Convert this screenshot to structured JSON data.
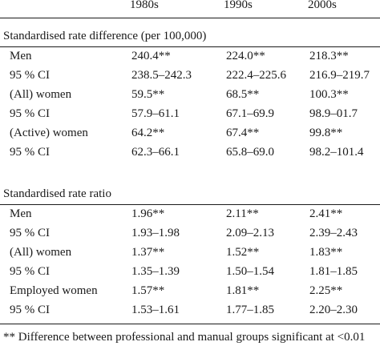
{
  "table": {
    "columns": [
      "1980s",
      "1990s",
      "2000s"
    ],
    "sections": [
      {
        "title": "Standardised rate difference (per 100,000)",
        "rows": [
          {
            "label": "Men",
            "values": [
              "240.4**",
              "224.0**",
              "218.3**"
            ]
          },
          {
            "label": "95 % CI",
            "values": [
              "238.5–242.3",
              "222.4–225.6",
              "216.9–219.7"
            ]
          },
          {
            "label": "(All) women",
            "values": [
              "59.5**",
              "68.5**",
              "100.3**"
            ]
          },
          {
            "label": "95 % CI",
            "values": [
              "57.9–61.1",
              "67.1–69.9",
              "98.9–01.7"
            ]
          },
          {
            "label": "(Active) women",
            "values": [
              "64.2**",
              "67.4**",
              "99.8**"
            ]
          },
          {
            "label": "95 % CI",
            "values": [
              "62.3–66.1",
              "65.8–69.0",
              "98.2–101.4"
            ]
          }
        ]
      },
      {
        "title": "Standardised rate ratio",
        "rows": [
          {
            "label": "Men",
            "values": [
              "1.96**",
              "2.11**",
              "2.41**"
            ]
          },
          {
            "label": "95 % CI",
            "values": [
              "1.93–1.98",
              "2.09–2.13",
              "2.39–2.43"
            ]
          },
          {
            "label": "(All) women",
            "values": [
              "1.37**",
              "1.52**",
              "1.83**"
            ]
          },
          {
            "label": "95 % CI",
            "values": [
              "1.35–1.39",
              "1.50–1.54",
              "1.81–1.85"
            ]
          },
          {
            "label": "Employed women",
            "values": [
              "1.57**",
              "1.81**",
              "2.25**"
            ]
          },
          {
            "label": "95 % CI",
            "values": [
              "1.53–1.61",
              "1.77–1.85",
              "2.20–2.30"
            ]
          }
        ]
      }
    ],
    "footnote": "** Difference between professional and manual groups significant at <0.01"
  }
}
